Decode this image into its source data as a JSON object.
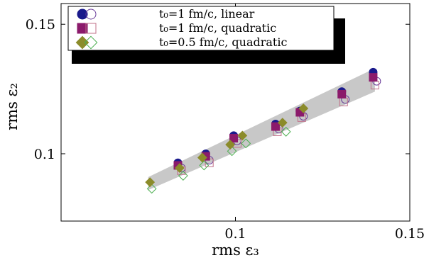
{
  "chart_data": {
    "type": "scatter",
    "xlabel": "rms ε₃",
    "ylabel": "rms ε₂",
    "xlim": [
      0.05,
      0.15
    ],
    "ylim": [
      0.074,
      0.158
    ],
    "xticks": [
      0.1,
      0.15
    ],
    "xtick_labels": [
      "0.1",
      "0.15"
    ],
    "yticks": [
      0.1,
      0.15
    ],
    "ytick_labels": [
      "0.1",
      "0.15"
    ],
    "legend_position": "top-left",
    "legend": [
      {
        "text": "t₀=1 fm/c, linear",
        "marker": "circle"
      },
      {
        "text": "t₀=1 fm/c, quadratic",
        "marker": "square"
      },
      {
        "text": "t₀=0.5 fm/c, quadratic",
        "marker": "diamond"
      }
    ],
    "colors": {
      "navy": "#1a1a8c",
      "purple_violet": "#6a3d9a",
      "magenta": "#8b1a6b",
      "pink_light": "#c07088",
      "olive": "#8b8b2a",
      "green_light": "#4caf50",
      "band": "#c8c8c8"
    },
    "band": {
      "lower": [
        [
          0.075,
          0.086
        ],
        [
          0.14,
          0.124
        ]
      ],
      "upper": [
        [
          0.075,
          0.091
        ],
        [
          0.14,
          0.133
        ]
      ]
    },
    "series": [
      {
        "name": "t₀=1 fm/c, linear (filled)",
        "marker": "circle",
        "filled": true,
        "color": "#1a1a8c",
        "x": [
          0.0835,
          0.0915,
          0.0995,
          0.1115,
          0.1185,
          0.1305,
          0.1395
        ],
        "y": [
          0.0965,
          0.1,
          0.107,
          0.1115,
          0.1165,
          0.124,
          0.1315
        ]
      },
      {
        "name": "t₀=1 fm/c, linear (open)",
        "marker": "circle",
        "filled": false,
        "color": "#6a3d9a",
        "x": [
          0.0845,
          0.0925,
          0.1005,
          0.1125,
          0.1195,
          0.1315,
          0.1405
        ],
        "y": [
          0.0945,
          0.0975,
          0.105,
          0.1095,
          0.1145,
          0.121,
          0.128
        ]
      },
      {
        "name": "t₀=1 fm/c, quadratic (filled)",
        "marker": "square",
        "filled": true,
        "color": "#8b1a6b",
        "x": [
          0.0835,
          0.0915,
          0.0995,
          0.1115,
          0.1185,
          0.1305,
          0.1395
        ],
        "y": [
          0.0955,
          0.099,
          0.106,
          0.1105,
          0.116,
          0.123,
          0.1295
        ]
      },
      {
        "name": "t₀=1 fm/c, quadratic (open)",
        "marker": "square",
        "filled": false,
        "color": "#c07088",
        "x": [
          0.0845,
          0.0925,
          0.1005,
          0.112,
          0.119,
          0.131,
          0.14
        ],
        "y": [
          0.0935,
          0.0965,
          0.104,
          0.1085,
          0.114,
          0.12,
          0.1265
        ]
      },
      {
        "name": "t₀=0.5 fm/c, quadratic (filled)",
        "marker": "diamond",
        "filled": true,
        "color": "#8b8b2a",
        "x": [
          0.0755,
          0.084,
          0.0905,
          0.0985,
          0.102,
          0.1135,
          0.1195
        ],
        "y": [
          0.089,
          0.0945,
          0.0985,
          0.1035,
          0.107,
          0.112,
          0.1175
        ]
      },
      {
        "name": "t₀=0.5 fm/c, quadratic (open)",
        "marker": "diamond",
        "filled": false,
        "color": "#4caf50",
        "x": [
          0.076,
          0.085,
          0.091,
          0.099,
          0.103,
          0.1145
        ],
        "y": [
          0.0865,
          0.0915,
          0.0955,
          0.101,
          0.104,
          0.1085
        ]
      }
    ]
  }
}
